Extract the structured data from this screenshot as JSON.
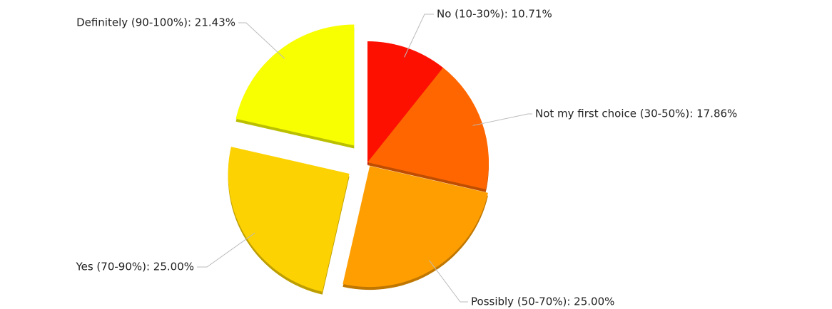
{
  "chart_data": {
    "type": "pie",
    "categories": [
      "No (10-30%): 10.71%",
      "Not my first choice (30-50%): 17.86%",
      "Possibly (50-70%): 25.00%",
      "Yes (70-90%): 25.00%",
      "Definitely (90-100%): 21.43%"
    ],
    "values": [
      10.71,
      17.86,
      25.0,
      25.0,
      21.43
    ],
    "colors": [
      "#fe1000",
      "#ff6600",
      "#ff9e01",
      "#fcd202",
      "#f8ff01"
    ]
  }
}
